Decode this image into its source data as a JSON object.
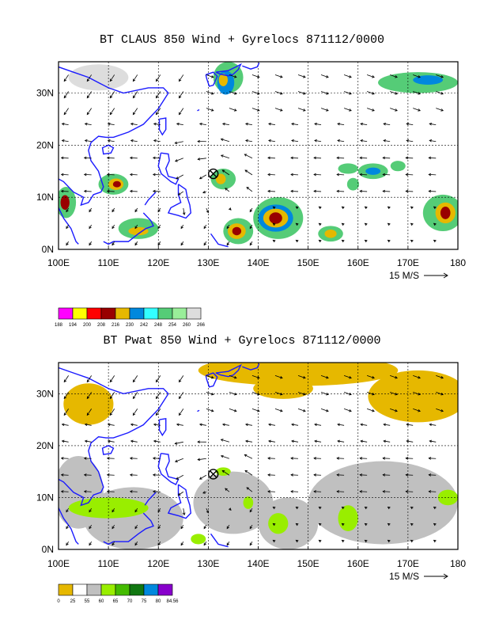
{
  "chart_data": [
    {
      "type": "heatmap",
      "title": "BT CLAUS 850 Wind + Gyrelocs 871112/0000",
      "x_ticks": [
        "100E",
        "110E",
        "120E",
        "130E",
        "140E",
        "150E",
        "160E",
        "170E",
        "180"
      ],
      "y_ticks": [
        "0N",
        "10N",
        "20N",
        "30N"
      ],
      "xlim": [
        100,
        180
      ],
      "ylim": [
        0,
        36
      ],
      "grid": true,
      "reference_vector": "15 M/S",
      "gyre_marker": {
        "lon": 131,
        "lat": 14.5
      },
      "legend": {
        "colors": [
          "#ff00ff",
          "#ffff00",
          "#ff0000",
          "#990000",
          "#e6b800",
          "#0088dd",
          "#33ffff",
          "#55cc77",
          "#99ee99",
          "#dddddd"
        ],
        "labels": [
          "188",
          "194",
          "200",
          "208",
          "216",
          "230",
          "242",
          "248",
          "254",
          "260",
          "266"
        ]
      },
      "shaded_regions": [
        {
          "color": "#dddddd",
          "lon": 108,
          "lat": 33,
          "rx": 6,
          "ry": 2.5
        },
        {
          "color": "#55cc77",
          "lon": 134,
          "lat": 33,
          "rx": 3,
          "ry": 3
        },
        {
          "color": "#0088dd",
          "lon": 133.5,
          "lat": 32,
          "rx": 1.7,
          "ry": 2.3
        },
        {
          "color": "#e6b800",
          "lon": 133,
          "lat": 32.5,
          "rx": 0.9,
          "ry": 1.2
        },
        {
          "color": "#55cc77",
          "lon": 172,
          "lat": 32,
          "rx": 8,
          "ry": 2
        },
        {
          "color": "#0088dd",
          "lon": 174,
          "lat": 32.5,
          "rx": 3,
          "ry": 0.9
        },
        {
          "color": "#55cc77",
          "lon": 111,
          "lat": 12.5,
          "rx": 3,
          "ry": 2
        },
        {
          "color": "#e6b800",
          "lon": 111.5,
          "lat": 12.5,
          "rx": 1.5,
          "ry": 1.1
        },
        {
          "color": "#990000",
          "lon": 111.7,
          "lat": 12.5,
          "rx": 0.8,
          "ry": 0.6
        },
        {
          "color": "#55cc77",
          "lon": 101.5,
          "lat": 9,
          "rx": 2,
          "ry": 3
        },
        {
          "color": "#990000",
          "lon": 101.3,
          "lat": 9,
          "rx": 0.9,
          "ry": 1.4
        },
        {
          "color": "#55cc77",
          "lon": 133,
          "lat": 13.5,
          "rx": 2.5,
          "ry": 2
        },
        {
          "color": "#e6b800",
          "lon": 132.5,
          "lat": 13.5,
          "rx": 1,
          "ry": 1
        },
        {
          "color": "#55cc77",
          "lon": 144,
          "lat": 6,
          "rx": 5,
          "ry": 4
        },
        {
          "color": "#0088dd",
          "lon": 143.5,
          "lat": 6,
          "rx": 3.5,
          "ry": 2.6
        },
        {
          "color": "#e6b800",
          "lon": 143.5,
          "lat": 6,
          "rx": 2.5,
          "ry": 1.8
        },
        {
          "color": "#990000",
          "lon": 143.5,
          "lat": 6,
          "rx": 1.3,
          "ry": 1.1
        },
        {
          "color": "#55cc77",
          "lon": 136,
          "lat": 3.5,
          "rx": 3,
          "ry": 2.5
        },
        {
          "color": "#e6b800",
          "lon": 135.7,
          "lat": 3.5,
          "rx": 1.8,
          "ry": 1.5
        },
        {
          "color": "#990000",
          "lon": 135.7,
          "lat": 3.5,
          "rx": 0.9,
          "ry": 0.8
        },
        {
          "color": "#55cc77",
          "lon": 116,
          "lat": 4,
          "rx": 4,
          "ry": 2
        },
        {
          "color": "#e6b800",
          "lon": 116,
          "lat": 3.5,
          "rx": 2,
          "ry": 0.8
        },
        {
          "color": "#55cc77",
          "lon": 154.5,
          "lat": 3,
          "rx": 2.5,
          "ry": 1.5
        },
        {
          "color": "#e6b800",
          "lon": 154.5,
          "lat": 3,
          "rx": 1.2,
          "ry": 0.8
        },
        {
          "color": "#55cc77",
          "lon": 177,
          "lat": 7,
          "rx": 4,
          "ry": 3.5
        },
        {
          "color": "#e6b800",
          "lon": 177.5,
          "lat": 7,
          "rx": 2,
          "ry": 2
        },
        {
          "color": "#990000",
          "lon": 177.5,
          "lat": 7,
          "rx": 1,
          "ry": 1.2
        },
        {
          "color": "#55cc77",
          "lon": 163,
          "lat": 15,
          "rx": 3,
          "ry": 1.5
        },
        {
          "color": "#0088dd",
          "lon": 163,
          "lat": 15,
          "rx": 1.5,
          "ry": 0.7
        },
        {
          "color": "#55cc77",
          "lon": 158,
          "lat": 15.5,
          "rx": 2,
          "ry": 1
        },
        {
          "color": "#55cc77",
          "lon": 159,
          "lat": 12.5,
          "rx": 1.2,
          "ry": 1.2
        },
        {
          "color": "#55cc77",
          "lon": 168,
          "lat": 16,
          "rx": 1.5,
          "ry": 1
        }
      ]
    },
    {
      "type": "heatmap",
      "title": "BT Pwat 850 Wind + Gyrelocs 871112/0000",
      "x_ticks": [
        "100E",
        "110E",
        "120E",
        "130E",
        "140E",
        "150E",
        "160E",
        "170E",
        "180"
      ],
      "y_ticks": [
        "0N",
        "10N",
        "20N",
        "30N"
      ],
      "xlim": [
        100,
        180
      ],
      "ylim": [
        0,
        36
      ],
      "grid": true,
      "reference_vector": "15 M/S",
      "gyre_marker": {
        "lon": 131,
        "lat": 14.5
      },
      "legend": {
        "colors": [
          "#e6b800",
          "#ffffff",
          "#c0c0c0",
          "#99ee00",
          "#44bb00",
          "#117711",
          "#0088dd",
          "#8800cc"
        ],
        "labels": [
          "0",
          "25",
          "55",
          "60",
          "65",
          "70",
          "75",
          "80",
          "84.56"
        ]
      },
      "shaded_regions": [
        {
          "color": "#e6b800",
          "lon": 106,
          "lat": 28,
          "rx": 5,
          "ry": 4
        },
        {
          "color": "#e6b800",
          "lon": 148,
          "lat": 34.5,
          "rx": 20,
          "ry": 3
        },
        {
          "color": "#e6b800",
          "lon": 172,
          "lat": 29.5,
          "rx": 10,
          "ry": 5
        },
        {
          "color": "#e6b800",
          "lon": 145,
          "lat": 31,
          "rx": 6,
          "ry": 2
        },
        {
          "color": "#c0c0c0",
          "lon": 104,
          "lat": 11,
          "rx": 5,
          "ry": 7
        },
        {
          "color": "#c0c0c0",
          "lon": 115,
          "lat": 6,
          "rx": 10,
          "ry": 6
        },
        {
          "color": "#c0c0c0",
          "lon": 135,
          "lat": 9,
          "rx": 8,
          "ry": 6
        },
        {
          "color": "#c0c0c0",
          "lon": 146,
          "lat": 5,
          "rx": 6,
          "ry": 5
        },
        {
          "color": "#c0c0c0",
          "lon": 165,
          "lat": 9,
          "rx": 15,
          "ry": 8
        },
        {
          "color": "#99ee00",
          "lon": 110,
          "lat": 8,
          "rx": 8,
          "ry": 2
        },
        {
          "color": "#99ee00",
          "lon": 133,
          "lat": 15,
          "rx": 1.5,
          "ry": 0.8
        },
        {
          "color": "#99ee00",
          "lon": 138,
          "lat": 9,
          "rx": 1,
          "ry": 1.2
        },
        {
          "color": "#99ee00",
          "lon": 144,
          "lat": 5,
          "rx": 2,
          "ry": 2
        },
        {
          "color": "#99ee00",
          "lon": 158,
          "lat": 6,
          "rx": 2,
          "ry": 2.5
        },
        {
          "color": "#99ee00",
          "lon": 178,
          "lat": 10,
          "rx": 2,
          "ry": 1.5
        },
        {
          "color": "#99ee00",
          "lon": 128,
          "lat": 2,
          "rx": 1.5,
          "ry": 1
        }
      ]
    }
  ]
}
